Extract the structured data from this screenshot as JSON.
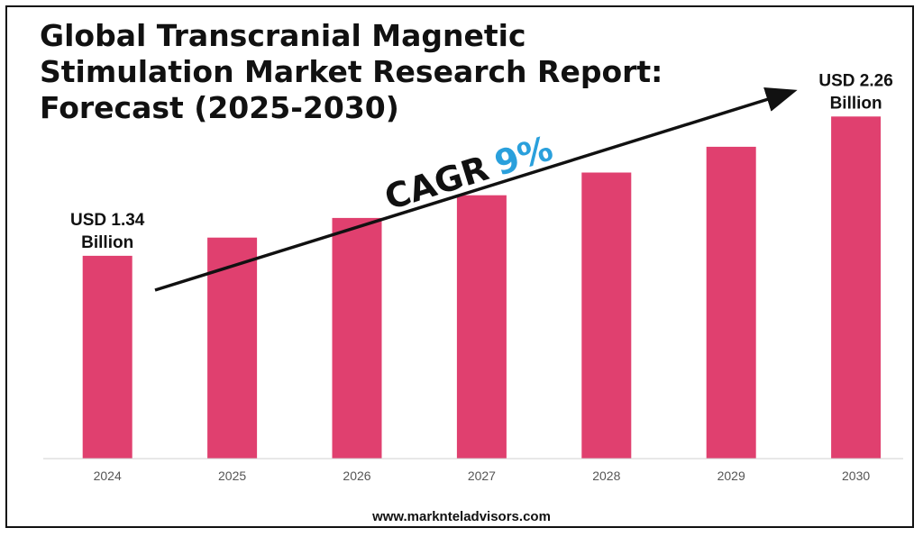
{
  "title": "Global Transcranial Magnetic Stimulation Market Research Report: Forecast (2025-2030)",
  "footer": "www.marknteladvisors.com",
  "colors": {
    "bar": "#e0406f",
    "accent": "#2aa0dc",
    "text": "#111111"
  },
  "cagr": {
    "label": "CAGR",
    "value": "9%"
  },
  "chart_data": {
    "type": "bar",
    "categories": [
      "2024",
      "2025",
      "2026",
      "2027",
      "2028",
      "2029",
      "2030"
    ],
    "values": [
      1.34,
      1.46,
      1.59,
      1.74,
      1.89,
      2.06,
      2.26
    ],
    "title": "Global Transcranial Magnetic Stimulation Market Research Report: Forecast (2025-2030)",
    "data_labels": [
      {
        "category": "2024",
        "line1": "USD 1.34",
        "line2": "Billion"
      },
      {
        "category": "2030",
        "line1": "USD 2.26",
        "line2": "Billion"
      }
    ],
    "xlabel": "",
    "ylabel": "",
    "grid": false
  }
}
